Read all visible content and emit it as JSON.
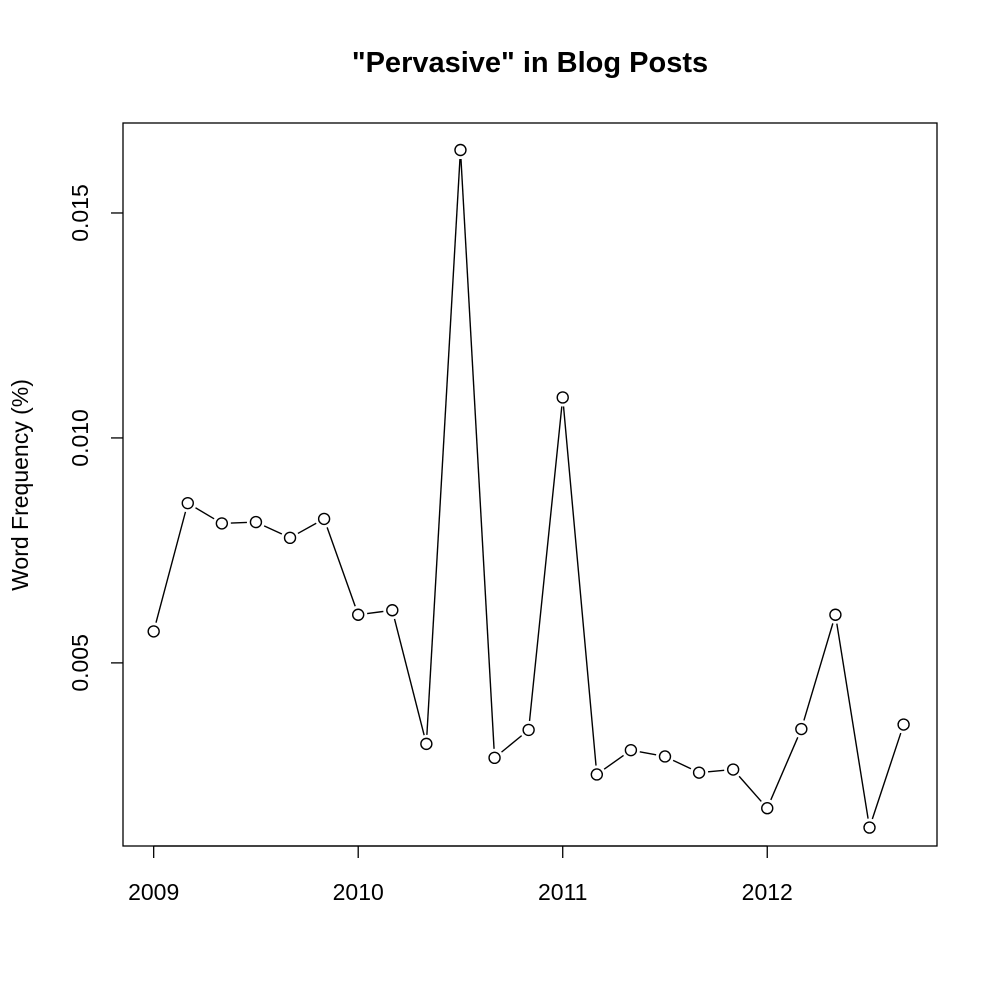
{
  "chart_data": {
    "type": "line",
    "title": "\"Pervasive\" in Blog Posts",
    "xlabel": "",
    "ylabel": "Word Frequency (%)",
    "x": [
      2009.0,
      2009.1667,
      2009.3333,
      2009.5,
      2009.6667,
      2009.8333,
      2010.0,
      2010.1667,
      2010.3333,
      2010.5,
      2010.6667,
      2010.8333,
      2011.0,
      2011.1667,
      2011.3333,
      2011.5,
      2011.6667,
      2011.8333,
      2012.0,
      2012.1667,
      2012.3333,
      2012.5,
      2012.6667
    ],
    "y": [
      0.0057,
      0.00855,
      0.0081,
      0.00813,
      0.00778,
      0.0082,
      0.00607,
      0.00617,
      0.0032,
      0.0164,
      0.00289,
      0.00351,
      0.0109,
      0.00252,
      0.00306,
      0.00292,
      0.00256,
      0.00263,
      0.00177,
      0.00353,
      0.00607,
      0.00134,
      0.00363
    ],
    "xlim": [
      2008.85,
      2012.83
    ],
    "ylim": [
      0.00093,
      0.017
    ],
    "x_ticks": [
      2009,
      2010,
      2011,
      2012
    ],
    "x_tick_labels": [
      "2009",
      "2010",
      "2011",
      "2012"
    ],
    "y_ticks": [
      0.005,
      0.01,
      0.015
    ],
    "y_tick_labels": [
      "0.005",
      "0.010",
      "0.015"
    ],
    "grid": false,
    "legend": "none",
    "line_color": "#000000",
    "marker": "open-circle"
  }
}
